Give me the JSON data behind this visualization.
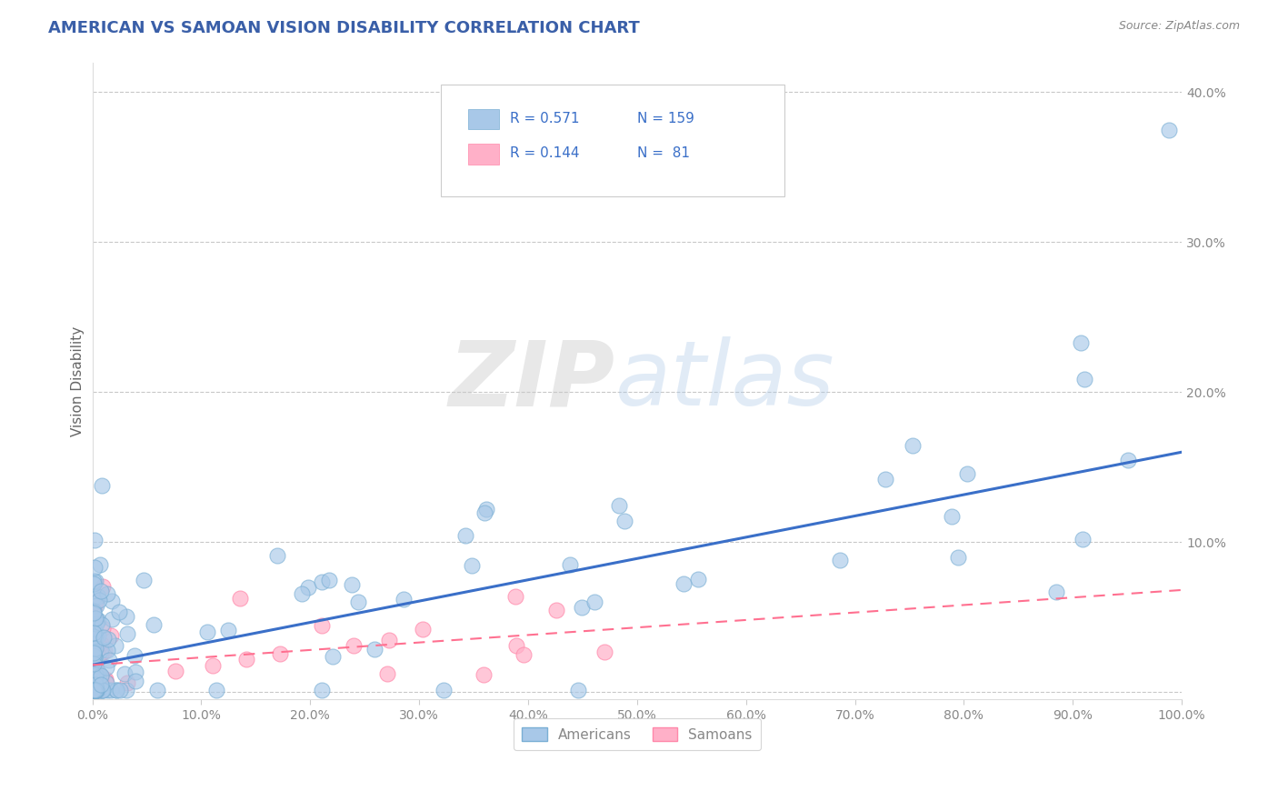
{
  "title": "AMERICAN VS SAMOAN VISION DISABILITY CORRELATION CHART",
  "source_text": "Source: ZipAtlas.com",
  "ylabel": "Vision Disability",
  "xlim": [
    0,
    1.0
  ],
  "ylim": [
    -0.005,
    0.42
  ],
  "xticks": [
    0.0,
    0.1,
    0.2,
    0.3,
    0.4,
    0.5,
    0.6,
    0.7,
    0.8,
    0.9,
    1.0
  ],
  "xtick_labels": [
    "0.0%",
    "10.0%",
    "20.0%",
    "30.0%",
    "40.0%",
    "50.0%",
    "60.0%",
    "70.0%",
    "80.0%",
    "90.0%",
    "100.0%"
  ],
  "yticks": [
    0.0,
    0.1,
    0.2,
    0.3,
    0.4
  ],
  "ytick_labels": [
    "",
    "10.0%",
    "20.0%",
    "30.0%",
    "40.0%"
  ],
  "title_color": "#3a5fa8",
  "title_fontsize": 13,
  "blue_color": "#a8c8e8",
  "blue_edge_color": "#7aafd4",
  "pink_color": "#ffb0c8",
  "pink_edge_color": "#ff88aa",
  "blue_line_color": "#3a6fc8",
  "pink_line_color": "#ff7090",
  "blue_line_start_y": 0.018,
  "blue_line_end_y": 0.16,
  "pink_line_start_y": 0.018,
  "pink_line_end_y": 0.068,
  "R_blue": 0.571,
  "N_blue": 159,
  "R_pink": 0.144,
  "N_pink": 81,
  "legend_label_blue": "Americans",
  "legend_label_pink": "Samoans",
  "watermark_zip": "ZIP",
  "watermark_atlas": "atlas",
  "background_color": "#FFFFFF",
  "grid_color": "#C8C8C8",
  "tick_color": "#888888",
  "ylabel_color": "#666666",
  "source_color": "#888888"
}
